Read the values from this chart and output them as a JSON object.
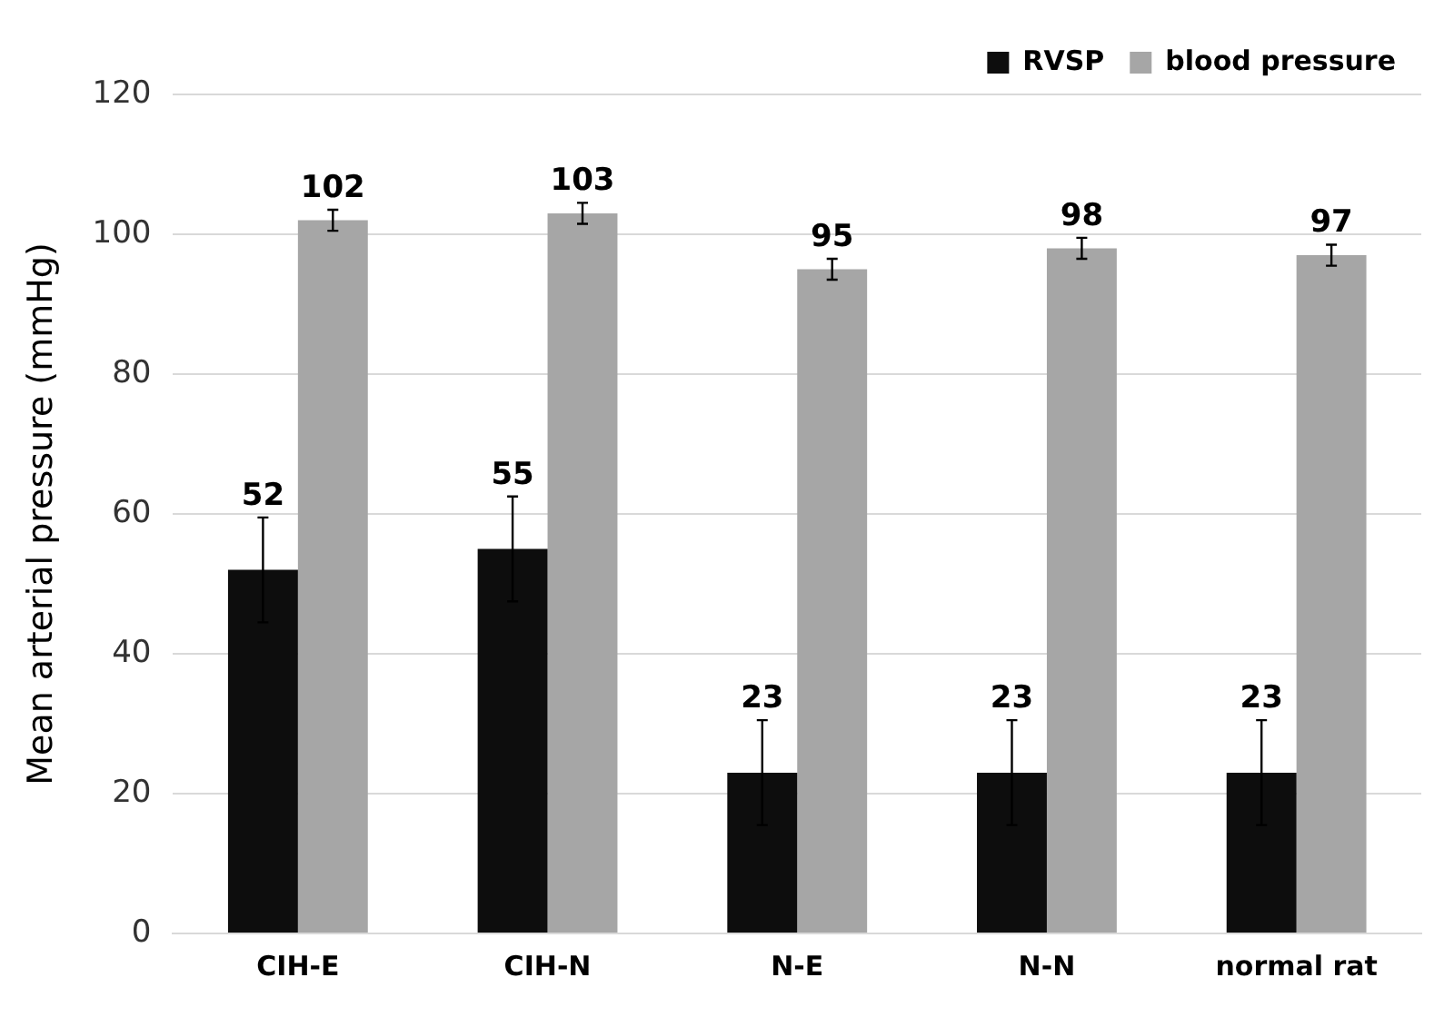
{
  "chart_data": {
    "type": "bar",
    "ylabel": "Mean arterial pressure (mmHg)",
    "categories": [
      "CIH-E",
      "CIH-N",
      "N-E",
      "N-N",
      "normal rat"
    ],
    "series": [
      {
        "name": "RVSP",
        "color": "#0d0d0d",
        "values": [
          52,
          55,
          23,
          23,
          23
        ],
        "errors": [
          7.5,
          7.5,
          7.5,
          7.5,
          7.5
        ]
      },
      {
        "name": "blood pressure",
        "color": "#a6a6a6",
        "values": [
          102,
          103,
          95,
          98,
          97
        ],
        "errors": [
          1.5,
          1.5,
          1.5,
          1.5,
          1.5
        ]
      }
    ],
    "ylim": [
      0,
      120
    ],
    "yticks": [
      0,
      20,
      40,
      60,
      80,
      100,
      120
    ],
    "grid": "y",
    "legend": "top right",
    "data_labels": true
  }
}
